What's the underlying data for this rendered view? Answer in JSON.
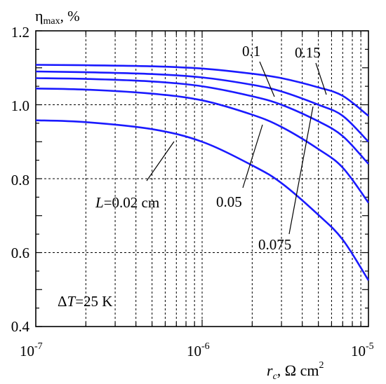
{
  "chart_data": {
    "type": "line",
    "x_scale": "log",
    "xlim": [
      1e-07,
      1e-05
    ],
    "ylim": [
      0.4,
      1.2
    ],
    "grid": true,
    "colors": {
      "series": "#1a1aff",
      "grid": "#000000",
      "axes": "#000000"
    },
    "ylabel": {
      "symbol": "η",
      "subscript": "max",
      "unit": ", %"
    },
    "xlabel": {
      "symbol": "r",
      "subscript": "c",
      "unit": ", Ω cm",
      "superscript": "2"
    },
    "y_ticks": [
      {
        "value": 0.4,
        "label": "0.4"
      },
      {
        "value": 0.6,
        "label": "0.6"
      },
      {
        "value": 0.8,
        "label": "0.8"
      },
      {
        "value": 1.0,
        "label": "1.0"
      },
      {
        "value": 1.2,
        "label": "1.2"
      }
    ],
    "x_ticks": [
      {
        "value": 1e-07,
        "base": "10",
        "exp": "-7"
      },
      {
        "value": 1e-06,
        "base": "10",
        "exp": "-6"
      },
      {
        "value": 1e-05,
        "base": "10",
        "exp": "-5"
      }
    ],
    "x": [
      1e-07,
      2e-07,
      5e-07,
      1e-06,
      2e-06,
      3e-06,
      5e-06,
      7e-06,
      1e-05
    ],
    "series": [
      {
        "name": "0.02 cm",
        "values": [
          0.958,
          0.953,
          0.934,
          0.9,
          0.836,
          0.788,
          0.702,
          0.635,
          0.525
        ]
      },
      {
        "name": "0.05",
        "values": [
          1.044,
          1.041,
          1.03,
          1.012,
          0.973,
          0.94,
          0.88,
          0.83,
          0.735
        ]
      },
      {
        "name": "0.075",
        "values": [
          1.072,
          1.07,
          1.063,
          1.05,
          1.023,
          1.0,
          0.955,
          0.915,
          0.84
        ]
      },
      {
        "name": "0.1",
        "values": [
          1.09,
          1.088,
          1.083,
          1.074,
          1.054,
          1.036,
          1.0,
          0.97,
          0.9
        ]
      },
      {
        "name": "0.15",
        "values": [
          1.108,
          1.107,
          1.104,
          1.098,
          1.084,
          1.072,
          1.047,
          1.024,
          0.97
        ]
      }
    ],
    "annotations": [
      {
        "prefix": "L",
        "text": "=0.02 cm",
        "series": 0,
        "at_x": 1.8e-06
      },
      {
        "text": "0.05",
        "series": 1,
        "at_x": 2.6e-06
      },
      {
        "text": "0.075",
        "series": 2,
        "at_x": 5.6e-06
      },
      {
        "text": "0.1",
        "series": 3,
        "at_x": 3.1e-06
      },
      {
        "text": "0.15",
        "series": 4,
        "at_x": 7.7e-06
      }
    ],
    "condition": {
      "prefix": "Δ",
      "symbol": "T",
      "value": "=25 K"
    }
  }
}
